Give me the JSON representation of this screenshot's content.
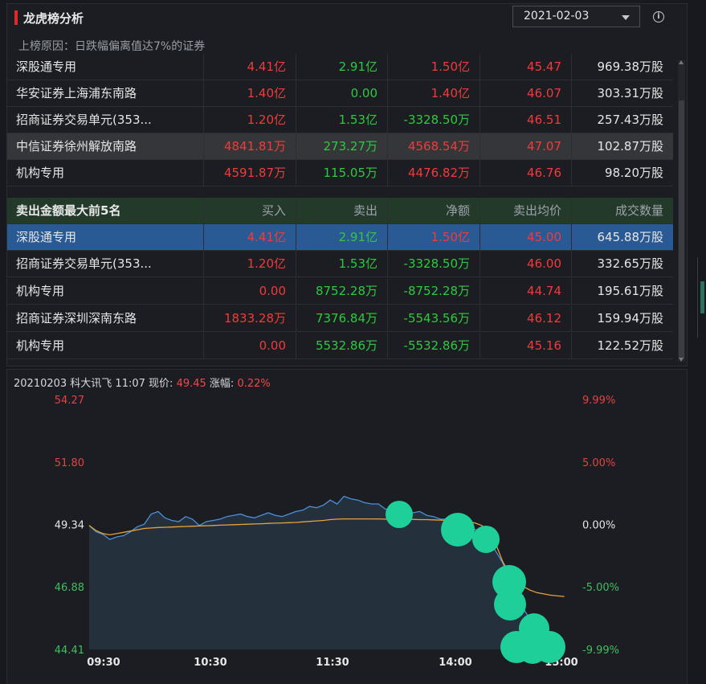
{
  "header": {
    "title": "龙虎榜分析",
    "date": "2021-02-03"
  },
  "reason": "上榜原因：日跌幅偏离值达7%的证券",
  "buy_rows": [
    {
      "name": "深股通专用",
      "buy": "4.41亿",
      "sell": "2.91亿",
      "net": "1.50亿",
      "avg": "45.47",
      "vol": "969.38万股"
    },
    {
      "name": "华安证券上海浦东南路",
      "buy": "1.40亿",
      "sell": "0.00",
      "net": "1.40亿",
      "avg": "46.07",
      "vol": "303.31万股"
    },
    {
      "name": "招商证券交易单元(353...",
      "buy": "1.20亿",
      "sell": "1.53亿",
      "net": "-3328.50万",
      "avg": "46.51",
      "vol": "257.43万股"
    },
    {
      "name": "中信证券徐州解放南路",
      "buy": "4841.81万",
      "sell": "273.27万",
      "net": "4568.54万",
      "avg": "47.07",
      "vol": "102.87万股"
    },
    {
      "name": "机构专用",
      "buy": "4591.87万",
      "sell": "115.05万",
      "net": "4476.82万",
      "avg": "46.76",
      "vol": "98.20万股"
    }
  ],
  "sell_section": {
    "headers": [
      "卖出金额最大前5名",
      "买入",
      "卖出",
      "净额",
      "卖出均价",
      "成交数量"
    ],
    "rows": [
      {
        "name": "深股通专用",
        "buy": "4.41亿",
        "sell": "2.91亿",
        "net": "1.50亿",
        "avg": "45.00",
        "vol": "645.88万股"
      },
      {
        "name": "招商证券交易单元(353...",
        "buy": "1.20亿",
        "sell": "1.53亿",
        "net": "-3328.50万",
        "avg": "46.00",
        "vol": "332.65万股"
      },
      {
        "name": "机构专用",
        "buy": "0.00",
        "sell": "8752.28万",
        "net": "-8752.28万",
        "avg": "44.74",
        "vol": "195.61万股"
      },
      {
        "name": "招商证券深圳深南东路",
        "buy": "1833.28万",
        "sell": "7376.84万",
        "net": "-5543.56万",
        "avg": "46.12",
        "vol": "159.94万股"
      },
      {
        "name": "机构专用",
        "buy": "0.00",
        "sell": "5532.86万",
        "net": "-5532.86万",
        "avg": "45.16",
        "vol": "122.52万股"
      }
    ]
  },
  "chart_info": {
    "prefix": "20210203 科大讯飞 11:07 现价:",
    "price": "49.45",
    "chg_label": "涨幅:",
    "chg": "0.22%"
  },
  "chart_data": {
    "type": "line",
    "y_left_ticks": [
      "54.27",
      "51.80",
      "49.34",
      "46.88",
      "44.41"
    ],
    "y_right_ticks": [
      "9.99%",
      "5.00%",
      "0.00%",
      "-5.00%",
      "-9.99%"
    ],
    "x_ticks": [
      "09:30",
      "10:30",
      "11:30",
      "14:00",
      "15:00"
    ],
    "ylim": [
      44.41,
      54.27
    ],
    "prev_close": 49.34,
    "series": [
      {
        "values": [
          49.3,
          49.05,
          48.95,
          48.75,
          48.85,
          48.9,
          49.05,
          49.25,
          49.35,
          49.75,
          49.85,
          49.6,
          49.5,
          49.45,
          49.65,
          49.55,
          49.3,
          49.45,
          49.5,
          49.55,
          49.65,
          49.7,
          49.75,
          49.65,
          49.6,
          49.7,
          49.8,
          49.7,
          49.65,
          49.75,
          49.85,
          49.9,
          50.05,
          50.0,
          50.1,
          50.3,
          50.15,
          50.45,
          50.35,
          50.3,
          50.2,
          50.15,
          50.15,
          49.95,
          49.85,
          49.7,
          49.75,
          49.8,
          49.85,
          49.7,
          49.65,
          49.55,
          49.55,
          49.45,
          49.4,
          49.3,
          49.15,
          48.95,
          48.75,
          48.3,
          47.85,
          47.2,
          46.6,
          46.05,
          45.6,
          45.2,
          44.9,
          44.75,
          44.65,
          44.55
        ]
      },
      {
        "values": [
          49.3,
          49.1,
          48.98,
          48.93,
          48.98,
          49.03,
          49.08,
          49.13,
          49.18,
          49.2,
          49.22,
          49.23,
          49.24,
          49.25,
          49.26,
          49.27,
          49.28,
          49.29,
          49.3,
          49.31,
          49.32,
          49.33,
          49.34,
          49.35,
          49.36,
          49.37,
          49.38,
          49.39,
          49.4,
          49.41,
          49.42,
          49.44,
          49.46,
          49.48,
          49.5,
          49.53,
          49.55,
          49.56,
          49.56,
          49.56,
          49.56,
          49.56,
          49.56,
          49.55,
          49.55,
          49.54,
          49.54,
          49.54,
          49.53,
          49.53,
          49.52,
          49.51,
          49.5,
          49.49,
          49.48,
          49.45,
          49.4,
          49.3,
          49.1,
          48.6,
          47.9,
          47.4,
          47.1,
          46.9,
          46.75,
          46.65,
          46.6,
          46.55,
          46.52,
          46.5
        ]
      }
    ]
  },
  "colors": {
    "price_line": "#4a90d9",
    "avg_line": "#e6a23c",
    "marker": "#1ecf9a",
    "up": "#f23a3a",
    "down": "#2fc93f"
  }
}
